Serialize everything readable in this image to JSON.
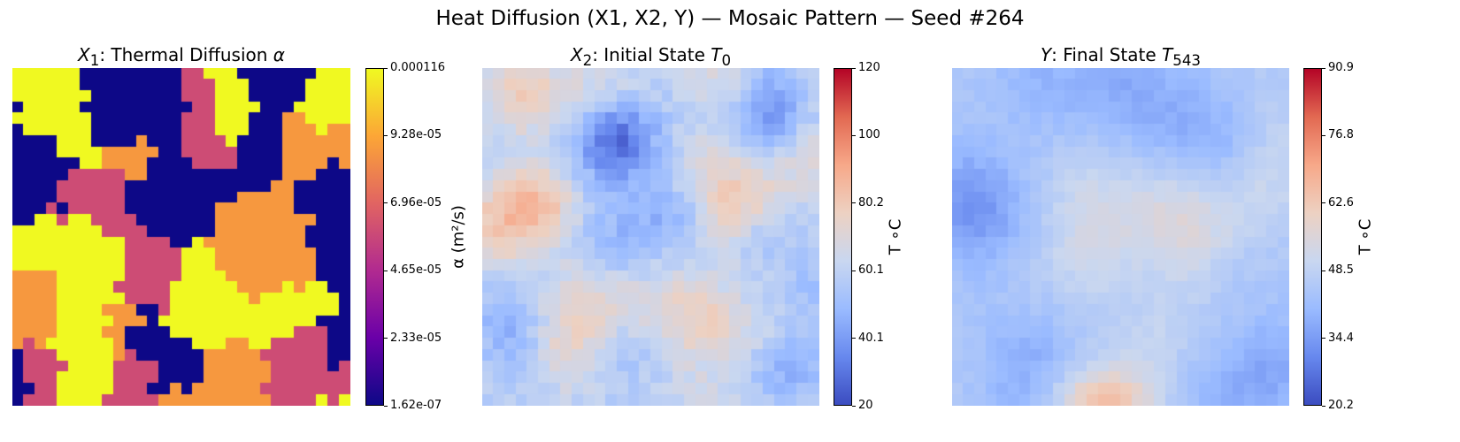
{
  "title": "Heat Diffusion (X1, X2, Y) — Mosaic Pattern  — Seed #264",
  "colors": {
    "plasma": [
      "#0d0887",
      "#6a00a8",
      "#b12a90",
      "#e16462",
      "#fca636",
      "#f0f921"
    ],
    "coolwarm": [
      "#3b4cc0",
      "#6788ee",
      "#9abbff",
      "#c9d7f0",
      "#edd1c2",
      "#f7a889",
      "#e26952",
      "#b40426"
    ]
  },
  "chart_data": [
    {
      "type": "heatmap",
      "title": "X1: Thermal Diffusion α",
      "title_parts": {
        "var": "X",
        "sub": "1",
        "text": ": Thermal Diffusion ",
        "sym": "α"
      },
      "colormap": "plasma",
      "grid_size": [
        30,
        30
      ],
      "levels": [
        1.62e-07,
        6e-05,
        8.8e-05,
        0.000116
      ],
      "level_names": [
        "dark-blue",
        "purple",
        "orange",
        "yellow"
      ],
      "colorbar": {
        "label": "α (m²/s)",
        "range": [
          1.62e-07,
          0.000116
        ],
        "ticks": [
          "1.62e-07",
          "2.33e-05",
          "4.65e-05",
          "6.96e-05",
          "9.28e-05",
          "0.000116"
        ]
      },
      "values_note": "mosaic of patches with four discrete levels"
    },
    {
      "type": "heatmap",
      "title": "X2: Initial State T0",
      "title_parts": {
        "var": "X",
        "sub": "2",
        "text": ": Initial State ",
        "sym": "T",
        "symsub": "0"
      },
      "colormap": "coolwarm",
      "grid_size": [
        30,
        30
      ],
      "colorbar": {
        "label": "T ∘C",
        "range": [
          20,
          120
        ],
        "ticks": [
          "20",
          "40.1",
          "60.1",
          "80.2",
          "100",
          "120"
        ]
      }
    },
    {
      "type": "heatmap",
      "title": "Y: Final State T543",
      "title_parts": {
        "var": "Y",
        "sub": "",
        "text": ": Final State ",
        "sym": "T",
        "symsub": "543"
      },
      "colormap": "coolwarm",
      "grid_size": [
        30,
        30
      ],
      "colorbar": {
        "label": "T ∘C",
        "range": [
          20.2,
          90.9
        ],
        "ticks": [
          "20.2",
          "34.4",
          "48.5",
          "62.6",
          "76.8",
          "90.9"
        ]
      }
    }
  ]
}
